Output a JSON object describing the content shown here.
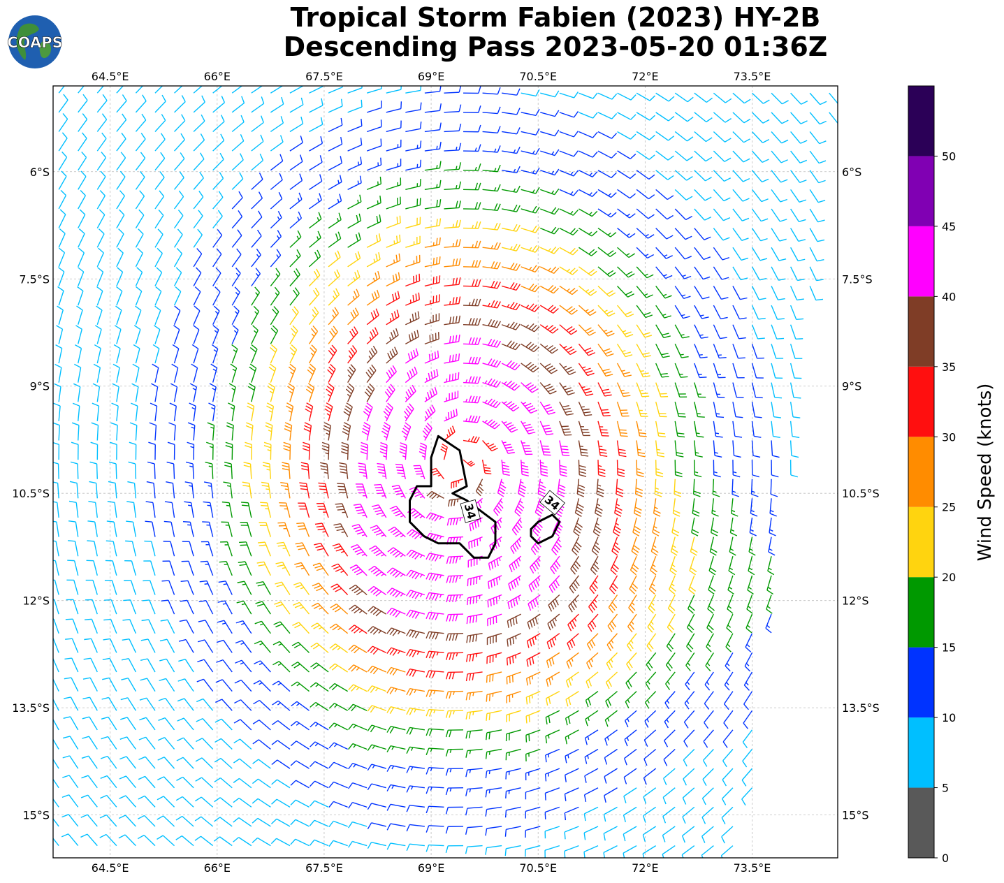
{
  "title": {
    "line1": "Tropical Storm Fabien (2023) HY-2B",
    "line2": "Descending Pass 2023-05-20 01:36Z"
  },
  "logo": {
    "text": "COAPS",
    "icon": "globe-icon"
  },
  "chart_data": {
    "type": "wind-barb-map",
    "lon_range": [
      63.7,
      74.7
    ],
    "lat_range": [
      -15.6,
      -4.8
    ],
    "lon_ticks": [
      "64.5°E",
      "66°E",
      "67.5°E",
      "69°E",
      "70.5°E",
      "72°E",
      "73.5°E"
    ],
    "lon_tick_values": [
      64.5,
      66,
      67.5,
      69,
      70.5,
      72,
      73.5
    ],
    "lat_ticks": [
      "6°S",
      "7.5°S",
      "9°S",
      "10.5°S",
      "12°S",
      "13.5°S",
      "15°S"
    ],
    "lat_tick_values": [
      -6,
      -7.5,
      -9,
      -10.5,
      -12,
      -13.5,
      -15
    ],
    "grid": true,
    "storm_center": {
      "lon": 69.4,
      "lat": -10.1
    },
    "contour_level": 34,
    "contour_labels": [
      "34",
      "34"
    ],
    "colorbar": {
      "label": "Wind Speed (knots)",
      "ticks": [
        "0",
        "5",
        "10",
        "15",
        "20",
        "25",
        "30",
        "35",
        "40",
        "45",
        "50"
      ],
      "bounds": [
        0,
        5,
        10,
        15,
        20,
        25,
        30,
        35,
        40,
        45,
        50,
        55
      ],
      "colors": [
        "#595959",
        "#00bfff",
        "#0033ff",
        "#009900",
        "#ffd40f",
        "#ff8c00",
        "#ff0f0f",
        "#7f3d26",
        "#ff00ff",
        "#8000b3",
        "#2b0057"
      ]
    }
  }
}
